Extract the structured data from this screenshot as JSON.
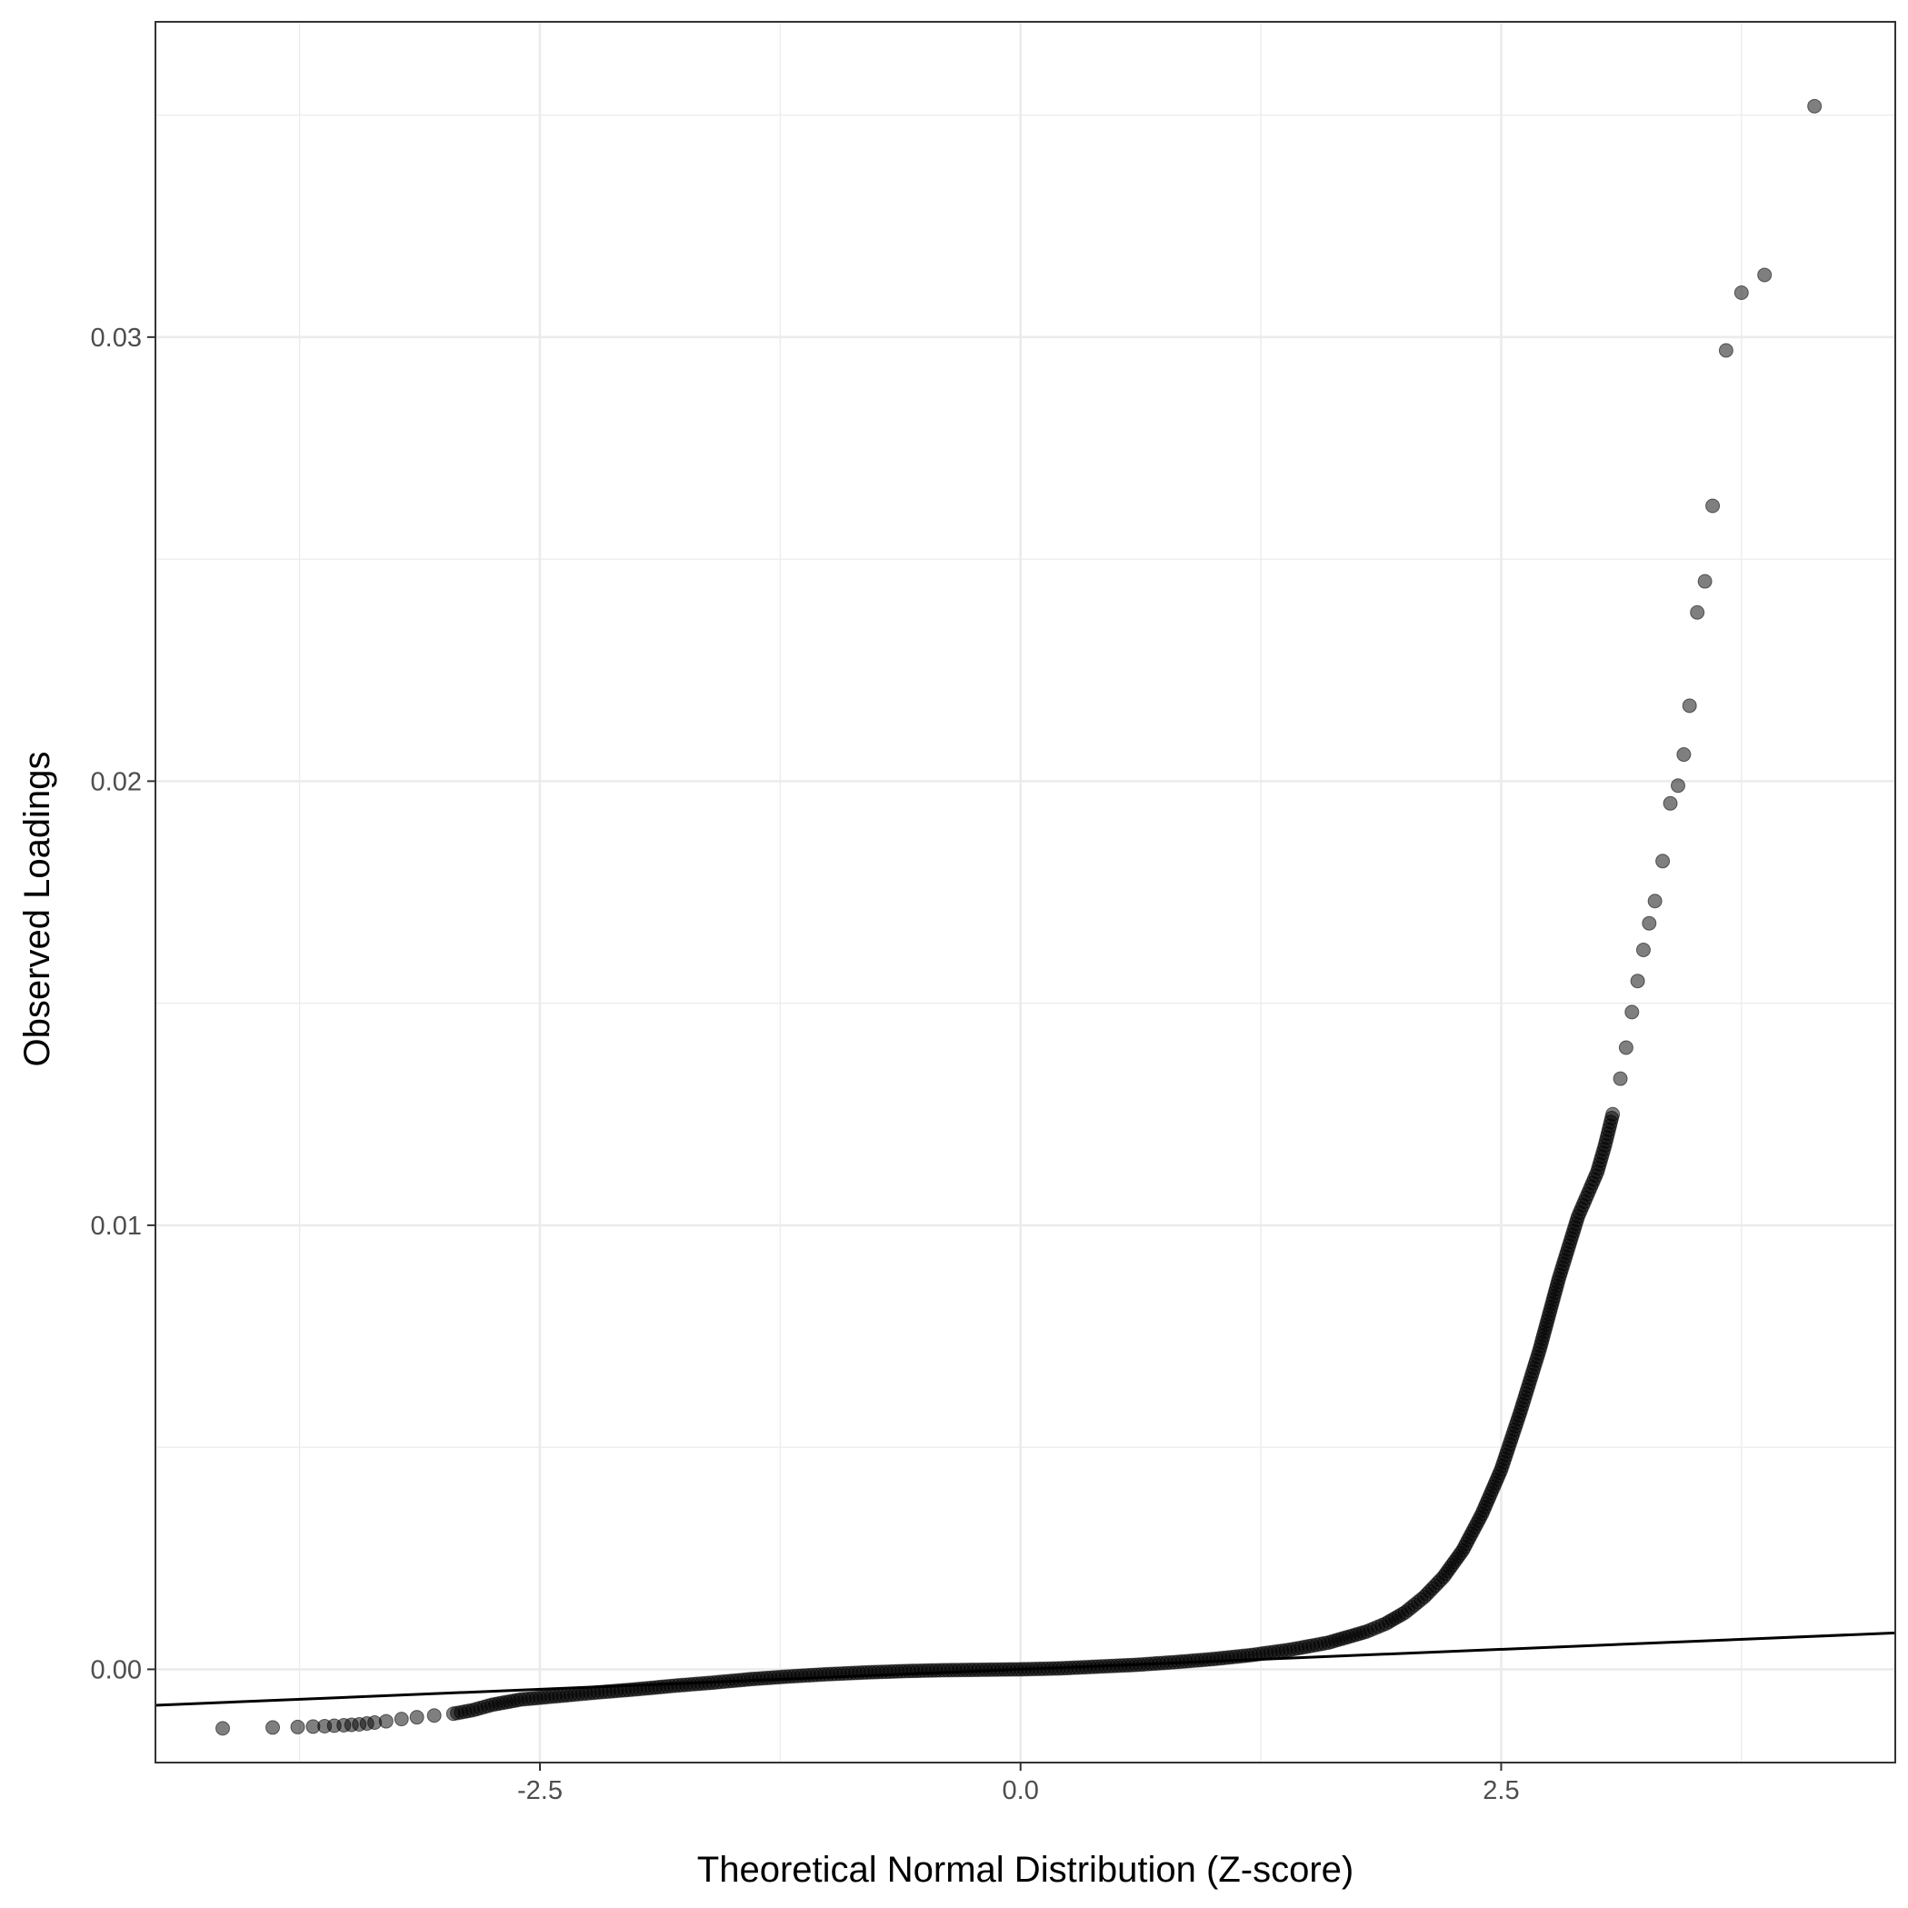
{
  "chart_data": {
    "type": "scatter",
    "title": "",
    "xlabel": "Theoretical Normal Distribution (Z-score)",
    "ylabel": "Observed Loadings",
    "xlim": [
      -4.5,
      4.55
    ],
    "ylim": [
      -0.0021,
      0.0371
    ],
    "x_ticks": [
      -2.5,
      0.0,
      2.5
    ],
    "x_tick_labels": [
      "-2.5",
      "0.0",
      "2.5"
    ],
    "y_ticks": [
      0.0,
      0.01,
      0.02,
      0.03
    ],
    "y_tick_labels": [
      "0.00",
      "0.01",
      "0.02",
      "0.03"
    ],
    "grid": true,
    "legend": "none",
    "point_color": "#000000",
    "point_alpha": 0.5,
    "reference_line": {
      "slope": 0.00018,
      "intercept": 0.0
    },
    "points": [
      [
        -4.15,
        -0.00133
      ],
      [
        -3.89,
        -0.00131
      ],
      [
        -3.76,
        -0.0013
      ],
      [
        -3.68,
        -0.00129
      ],
      [
        -3.62,
        -0.00128
      ],
      [
        -3.57,
        -0.00127
      ],
      [
        -3.52,
        -0.00126
      ],
      [
        -3.48,
        -0.00125
      ],
      [
        -3.44,
        -0.00124
      ],
      [
        -3.4,
        -0.00122
      ],
      [
        -3.36,
        -0.0012
      ],
      [
        -3.3,
        -0.00117
      ],
      [
        -3.22,
        -0.00112
      ],
      [
        -3.14,
        -0.00108
      ],
      [
        -3.05,
        -0.00104
      ],
      [
        -2.95,
        -0.001
      ],
      [
        -2.85,
        -0.00092
      ],
      [
        -2.75,
        -0.0008
      ],
      [
        -2.6,
        -0.00068
      ],
      [
        -2.4,
        -0.0006
      ],
      [
        -2.2,
        -0.00052
      ],
      [
        -2.0,
        -0.00045
      ],
      [
        -1.8,
        -0.00037
      ],
      [
        -1.6,
        -0.0003
      ],
      [
        -1.4,
        -0.00022
      ],
      [
        -1.2,
        -0.00016
      ],
      [
        -1.0,
        -0.00011
      ],
      [
        -0.8,
        -7e-05
      ],
      [
        -0.6,
        -4e-05
      ],
      [
        -0.4,
        -2e-05
      ],
      [
        -0.2,
        -1e-05
      ],
      [
        0.0,
        0.0
      ],
      [
        0.2,
        2e-05
      ],
      [
        0.4,
        6e-05
      ],
      [
        0.6,
        0.0001
      ],
      [
        0.8,
        0.00016
      ],
      [
        1.0,
        0.00023
      ],
      [
        1.2,
        0.00032
      ],
      [
        1.4,
        0.00044
      ],
      [
        1.6,
        0.0006
      ],
      [
        1.8,
        0.00085
      ],
      [
        1.9,
        0.00103
      ],
      [
        2.0,
        0.00128
      ],
      [
        2.1,
        0.00163
      ],
      [
        2.2,
        0.00208
      ],
      [
        2.3,
        0.00268
      ],
      [
        2.4,
        0.0035
      ],
      [
        2.5,
        0.0045
      ],
      [
        2.6,
        0.0058
      ],
      [
        2.7,
        0.0072
      ],
      [
        2.8,
        0.0088
      ],
      [
        2.9,
        0.0102
      ],
      [
        2.95,
        0.0107
      ],
      [
        3.0,
        0.0112
      ],
      [
        3.04,
        0.0118
      ],
      [
        3.08,
        0.0125
      ],
      [
        3.12,
        0.0133
      ],
      [
        3.15,
        0.014
      ],
      [
        3.18,
        0.0148
      ],
      [
        3.21,
        0.0155
      ],
      [
        3.24,
        0.0162
      ],
      [
        3.27,
        0.0168
      ],
      [
        3.3,
        0.0173
      ],
      [
        3.34,
        0.0182
      ],
      [
        3.38,
        0.0195
      ],
      [
        3.42,
        0.0199
      ],
      [
        3.45,
        0.0206
      ],
      [
        3.48,
        0.0217
      ],
      [
        3.52,
        0.0238
      ],
      [
        3.56,
        0.0245
      ],
      [
        3.6,
        0.0262
      ],
      [
        3.67,
        0.0297
      ],
      [
        3.75,
        0.031
      ],
      [
        3.87,
        0.0314
      ],
      [
        4.13,
        0.0352
      ]
    ]
  }
}
